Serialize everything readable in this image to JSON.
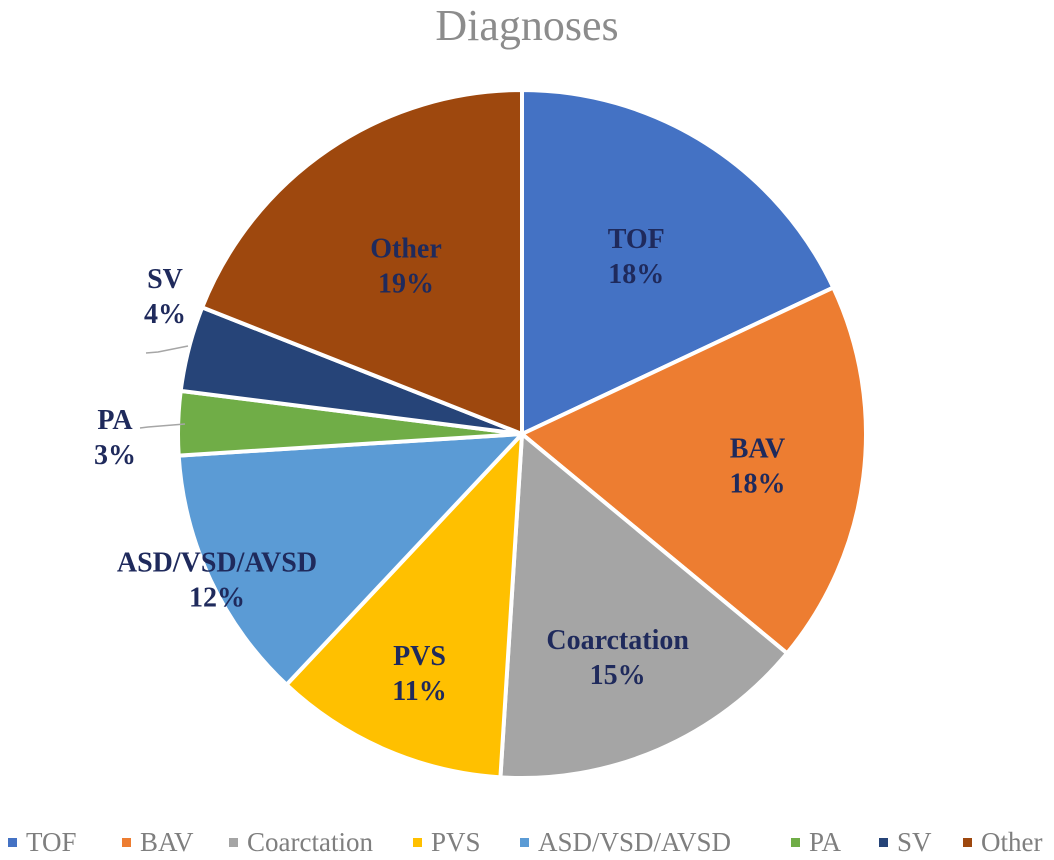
{
  "chart_data": {
    "type": "pie",
    "title": "Diagnoses",
    "legend_position": "bottom",
    "slices": [
      {
        "label": "TOF",
        "value": 18,
        "value_label": "18%",
        "color": "#4472c4"
      },
      {
        "label": "BAV",
        "value": 18,
        "value_label": "18%",
        "color": "#ed7d31"
      },
      {
        "label": "Coarctation",
        "value": 15,
        "value_label": "15%",
        "color": "#a5a5a5"
      },
      {
        "label": "PVS",
        "value": 11,
        "value_label": "11%",
        "color": "#ffc000"
      },
      {
        "label": "ASD/VSD/AVSD",
        "value": 12,
        "value_label": "12%",
        "color": "#5b9bd5"
      },
      {
        "label": "PA",
        "value": 3,
        "value_label": "3%",
        "color": "#70ad47"
      },
      {
        "label": "SV",
        "value": 4,
        "value_label": "4%",
        "color": "#264478"
      },
      {
        "label": "Other",
        "value": 19,
        "value_label": "19%",
        "color": "#9e480e"
      }
    ]
  }
}
